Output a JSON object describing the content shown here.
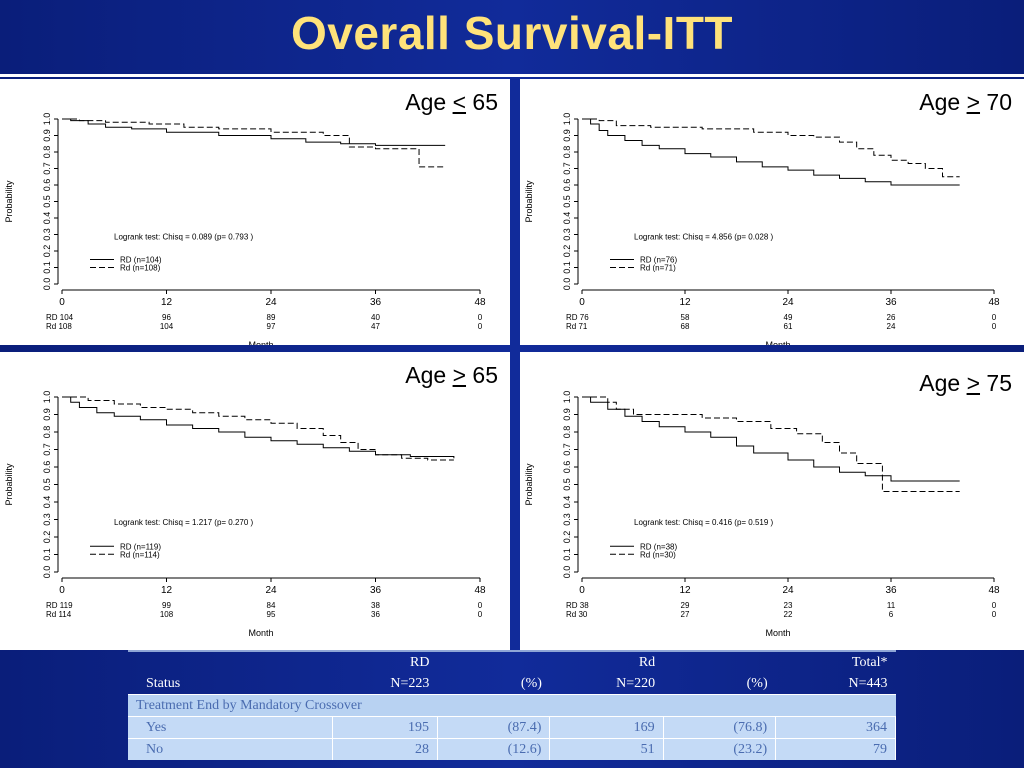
{
  "slide": {
    "title": "Overall Survival-ITT"
  },
  "panels": [
    {
      "label_prefix": "Age ",
      "label_op": "<",
      "label_suffix": " 65",
      "ylabel": "Probability",
      "xlabel": "Month",
      "logrank": "Logrank test: Chisq = 0.089 (p= 0.793 )",
      "legend": [
        "RD (n=104)",
        "Rd (n=108)"
      ],
      "risk_rows": [
        {
          "label": "RD 104",
          "values": [
            "96",
            "89",
            "40",
            "0"
          ]
        },
        {
          "label": "Rd 108",
          "values": [
            "104",
            "97",
            "47",
            "0"
          ]
        }
      ]
    },
    {
      "label_prefix": "Age ",
      "label_op": ">",
      "label_suffix": " 70",
      "ylabel": "Probability",
      "xlabel": "Month",
      "logrank": "Logrank test: Chisq = 4.856 (p= 0.028 )",
      "legend": [
        "RD (n=76)",
        "Rd (n=71)"
      ],
      "risk_rows": [
        {
          "label": "RD 76",
          "values": [
            "58",
            "49",
            "26",
            "0"
          ]
        },
        {
          "label": "Rd 71",
          "values": [
            "68",
            "61",
            "24",
            "0"
          ]
        }
      ]
    },
    {
      "label_prefix": "Age ",
      "label_op": ">",
      "label_suffix": " 65",
      "ylabel": "Probability",
      "xlabel": "Month",
      "logrank": "Logrank test: Chisq = 1.217 (p= 0.270 )",
      "legend": [
        "RD (n=119)",
        "Rd (n=114)"
      ],
      "risk_rows": [
        {
          "label": "RD 119",
          "values": [
            "99",
            "84",
            "38",
            "0"
          ]
        },
        {
          "label": "Rd 114",
          "values": [
            "108",
            "95",
            "36",
            "0"
          ]
        }
      ]
    },
    {
      "label_prefix": "Age ",
      "label_op": ">",
      "label_suffix": " 75",
      "ylabel": "Probability",
      "xlabel": "Month",
      "logrank": "Logrank test: Chisq = 0.416 (p= 0.519 )",
      "legend": [
        "RD (n=38)",
        "Rd (n=30)"
      ],
      "risk_rows": [
        {
          "label": "RD 38",
          "values": [
            "29",
            "23",
            "11",
            "0"
          ]
        },
        {
          "label": "Rd 30",
          "values": [
            "27",
            "22",
            "6",
            "0"
          ]
        }
      ]
    }
  ],
  "chart_data": [
    {
      "type": "line",
      "x_ticks": [
        "0",
        "12",
        "24",
        "36",
        "48"
      ],
      "y_ticks": [
        "0.0",
        "0.1",
        "0.2",
        "0.3",
        "0.4",
        "0.5",
        "0.6",
        "0.7",
        "0.8",
        "0.9",
        "1.0"
      ],
      "xlim": [
        0,
        48
      ],
      "ylim": [
        0,
        1
      ],
      "series": [
        {
          "name": "RD (n=104)",
          "style": "solid",
          "x": [
            0,
            1,
            3,
            5,
            8,
            12,
            18,
            24,
            28,
            32,
            36,
            40,
            44
          ],
          "y": [
            1.0,
            0.99,
            0.97,
            0.95,
            0.94,
            0.92,
            0.9,
            0.88,
            0.86,
            0.85,
            0.84,
            0.84,
            0.84
          ]
        },
        {
          "name": "Rd (n=108)",
          "style": "dashed",
          "x": [
            0,
            2,
            5,
            10,
            14,
            18,
            24,
            30,
            33,
            36,
            39,
            41,
            44
          ],
          "y": [
            1.0,
            0.99,
            0.98,
            0.97,
            0.95,
            0.94,
            0.92,
            0.9,
            0.83,
            0.82,
            0.82,
            0.71,
            0.71
          ]
        }
      ]
    },
    {
      "type": "line",
      "x_ticks": [
        "0",
        "12",
        "24",
        "36",
        "48"
      ],
      "y_ticks": [
        "0.0",
        "0.1",
        "0.2",
        "0.3",
        "0.4",
        "0.5",
        "0.6",
        "0.7",
        "0.8",
        "0.9",
        "1.0"
      ],
      "xlim": [
        0,
        48
      ],
      "ylim": [
        0,
        1
      ],
      "series": [
        {
          "name": "RD (n=76)",
          "style": "solid",
          "x": [
            0,
            1,
            2,
            3,
            5,
            7,
            9,
            12,
            15,
            18,
            21,
            24,
            27,
            30,
            33,
            36,
            40,
            44
          ],
          "y": [
            1.0,
            0.97,
            0.93,
            0.9,
            0.87,
            0.84,
            0.82,
            0.79,
            0.77,
            0.74,
            0.71,
            0.69,
            0.66,
            0.64,
            0.62,
            0.6,
            0.6,
            0.6
          ]
        },
        {
          "name": "Rd (n=71)",
          "style": "dashed",
          "x": [
            0,
            2,
            4,
            8,
            14,
            20,
            24,
            27,
            30,
            32,
            34,
            36,
            38,
            40,
            42,
            44
          ],
          "y": [
            1.0,
            0.99,
            0.96,
            0.95,
            0.94,
            0.92,
            0.9,
            0.89,
            0.86,
            0.82,
            0.78,
            0.75,
            0.73,
            0.7,
            0.65,
            0.65
          ]
        }
      ]
    },
    {
      "type": "line",
      "x_ticks": [
        "0",
        "12",
        "24",
        "36",
        "48"
      ],
      "y_ticks": [
        "0.0",
        "0.1",
        "0.2",
        "0.3",
        "0.4",
        "0.5",
        "0.6",
        "0.7",
        "0.8",
        "0.9",
        "1.0"
      ],
      "xlim": [
        0,
        48
      ],
      "ylim": [
        0,
        1
      ],
      "series": [
        {
          "name": "RD (n=119)",
          "style": "solid",
          "x": [
            0,
            1,
            2,
            4,
            6,
            9,
            12,
            15,
            18,
            21,
            24,
            27,
            30,
            33,
            36,
            40,
            45
          ],
          "y": [
            1.0,
            0.97,
            0.94,
            0.91,
            0.89,
            0.87,
            0.84,
            0.82,
            0.8,
            0.77,
            0.75,
            0.73,
            0.71,
            0.69,
            0.67,
            0.66,
            0.65
          ]
        },
        {
          "name": "Rd (n=114)",
          "style": "dashed",
          "x": [
            0,
            3,
            6,
            9,
            12,
            15,
            18,
            21,
            24,
            27,
            30,
            32,
            34,
            36,
            39,
            42,
            45
          ],
          "y": [
            1.0,
            0.98,
            0.96,
            0.94,
            0.93,
            0.91,
            0.89,
            0.87,
            0.85,
            0.82,
            0.78,
            0.74,
            0.7,
            0.67,
            0.65,
            0.64,
            0.64
          ]
        }
      ]
    },
    {
      "type": "line",
      "x_ticks": [
        "0",
        "12",
        "24",
        "36",
        "48"
      ],
      "y_ticks": [
        "0.0",
        "0.1",
        "0.2",
        "0.3",
        "0.4",
        "0.5",
        "0.6",
        "0.7",
        "0.8",
        "0.9",
        "1.0"
      ],
      "xlim": [
        0,
        48
      ],
      "ylim": [
        0,
        1
      ],
      "series": [
        {
          "name": "RD (n=38)",
          "style": "solid",
          "x": [
            0,
            1,
            3,
            5,
            7,
            9,
            12,
            15,
            18,
            20,
            24,
            27,
            30,
            33,
            36,
            40,
            44
          ],
          "y": [
            1.0,
            0.97,
            0.93,
            0.89,
            0.86,
            0.83,
            0.8,
            0.77,
            0.72,
            0.68,
            0.64,
            0.6,
            0.57,
            0.55,
            0.52,
            0.52,
            0.52
          ]
        },
        {
          "name": "Rd (n=30)",
          "style": "dashed",
          "x": [
            0,
            2,
            3,
            4,
            6,
            10,
            14,
            18,
            22,
            25,
            28,
            30,
            32,
            33,
            35,
            40,
            44
          ],
          "y": [
            1.0,
            1.0,
            0.97,
            0.93,
            0.9,
            0.9,
            0.88,
            0.86,
            0.82,
            0.79,
            0.74,
            0.68,
            0.62,
            0.62,
            0.46,
            0.46,
            0.46
          ]
        }
      ]
    }
  ],
  "table": {
    "group_headers": [
      "RD",
      "Rd",
      "Total*"
    ],
    "columns": [
      "Status",
      "N=223",
      "(%)",
      "N=220",
      "(%)",
      "N=443"
    ],
    "section_label": "Treatment End by Mandatory Crossover",
    "rows": [
      {
        "label": "Yes",
        "values": [
          "195",
          "(87.4)",
          "169",
          "(76.8)",
          "364"
        ]
      },
      {
        "label": "No",
        "values": [
          "28",
          "(12.6)",
          "51",
          "(23.2)",
          "79"
        ]
      }
    ]
  }
}
